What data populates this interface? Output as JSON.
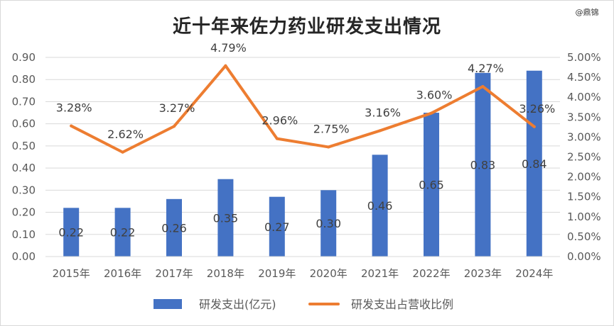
{
  "watermark": "@鼎锦",
  "chart_data": {
    "type": "bar",
    "title": "近十年来佐力药业研发支出情况",
    "categories": [
      "2015年",
      "2016年",
      "2017年",
      "2018年",
      "2019年",
      "2020年",
      "2021年",
      "2022年",
      "2023年",
      "2024年"
    ],
    "series": [
      {
        "name": "研发支出(亿元)",
        "type": "bar",
        "axis": "left",
        "color": "#4472C4",
        "values": [
          0.22,
          0.22,
          0.26,
          0.35,
          0.27,
          0.3,
          0.46,
          0.65,
          0.83,
          0.84
        ],
        "labels": [
          "0.22",
          "0.22",
          "0.26",
          "0.35",
          "0.27",
          "0.30",
          "0.46",
          "0.65",
          "0.83",
          "0.84"
        ]
      },
      {
        "name": "研发支出占营收比例",
        "type": "line",
        "axis": "right",
        "color": "#ED7D31",
        "values": [
          3.28,
          2.62,
          3.27,
          4.79,
          2.96,
          2.75,
          3.16,
          3.6,
          4.27,
          3.26
        ],
        "labels": [
          "3.28%",
          "2.62%",
          "3.27%",
          "4.79%",
          "2.96%",
          "2.75%",
          "3.16%",
          "3.60%",
          "4.27%",
          "3.26%"
        ]
      }
    ],
    "ylim": [
      0,
      0.9
    ],
    "y2lim": [
      0,
      5
    ],
    "yticks": [
      "0.00",
      "0.10",
      "0.20",
      "0.30",
      "0.40",
      "0.50",
      "0.60",
      "0.70",
      "0.80",
      "0.90"
    ],
    "y2ticks": [
      "0.00%",
      "0.50%",
      "1.00%",
      "1.50%",
      "2.00%",
      "2.50%",
      "3.00%",
      "3.50%",
      "4.00%",
      "4.50%",
      "5.00%"
    ],
    "grid": true,
    "legend": "bottom"
  }
}
